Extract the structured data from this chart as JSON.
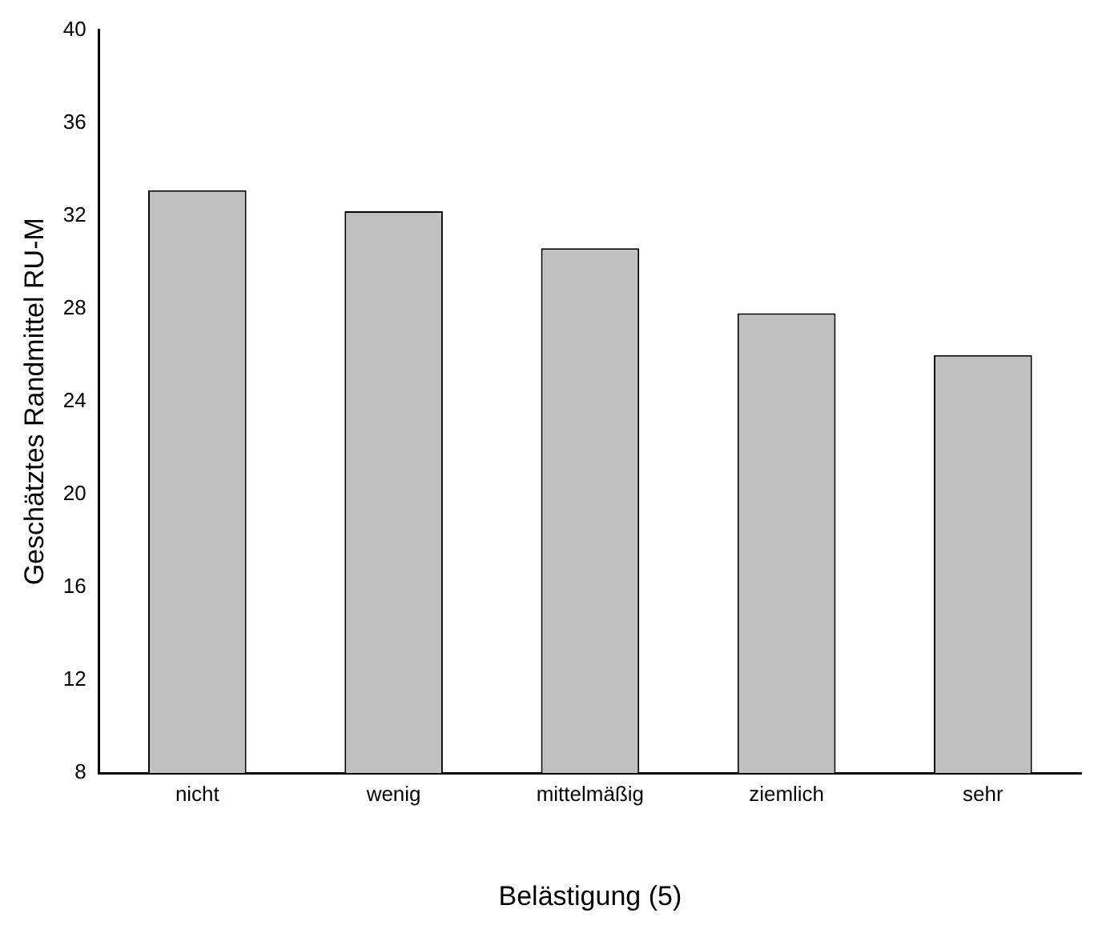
{
  "chart_data": {
    "type": "bar",
    "xlabel": "Belästigung (5)",
    "ylabel": "Geschätztes Randmittel RU-M",
    "categories": [
      "nicht",
      "wenig",
      "mittelmäßig",
      "ziemlich",
      "sehr"
    ],
    "values": [
      33.1,
      32.2,
      30.6,
      27.8,
      26.0
    ],
    "color": "#c0c0c0",
    "ylim": [
      8,
      40
    ],
    "yticks": [
      8,
      12,
      16,
      20,
      24,
      28,
      32,
      36,
      40
    ],
    "grid": false
  }
}
